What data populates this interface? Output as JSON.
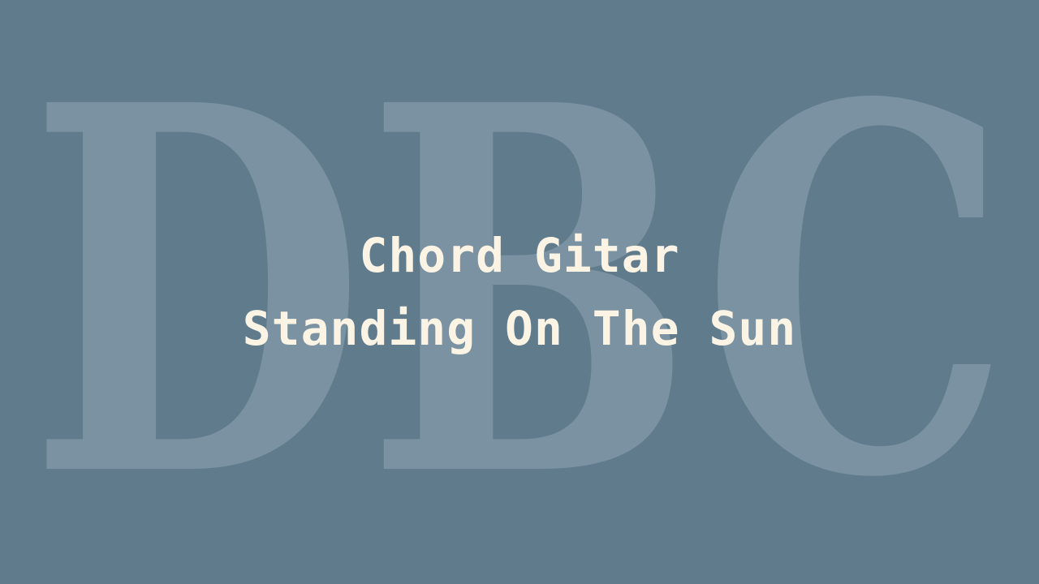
{
  "background_color": "#5f7b8c",
  "watermark": {
    "text": "DBC",
    "color": "#a5b8c4"
  },
  "title": {
    "line1": "Chord Gitar",
    "line2": "Standing On The Sun",
    "color": "#fbf3e4"
  }
}
